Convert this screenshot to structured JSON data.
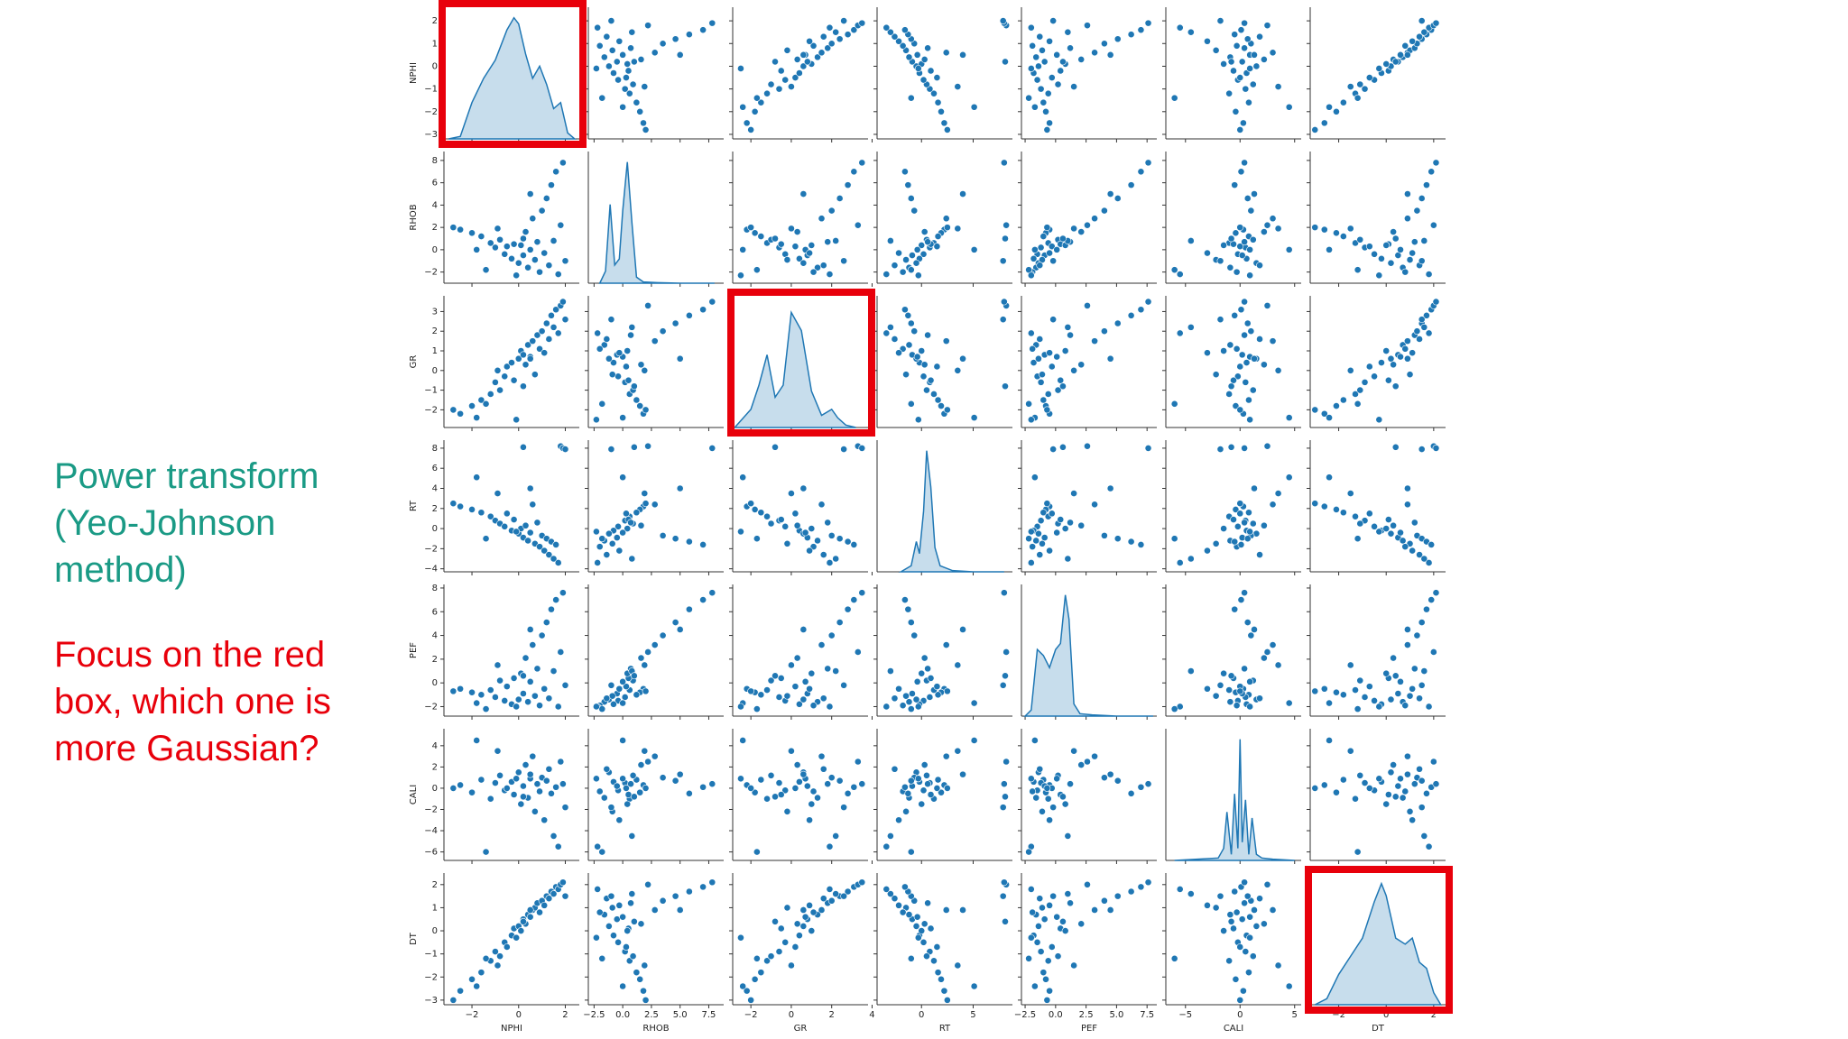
{
  "slide": {
    "text_teal": "Power transform (Yeo-Johnson method)",
    "text_red": "Focus on the red box, which one is more Gaussian?",
    "teal_color": "#1a9a85",
    "red_color": "#e8000b"
  },
  "chart_data": {
    "type": "pairplot",
    "color": "#1f77b4",
    "highlight": [
      0,
      2,
      6
    ],
    "highlight_color": "#e8000b",
    "variables": [
      {
        "name": "NPHI",
        "lim": [
          -3.2,
          2.6
        ],
        "xticks": [
          {
            "value": -2,
            "label": "−2"
          },
          0,
          2
        ],
        "yticks": [
          {
            "value": -3,
            "label": "−3"
          },
          {
            "value": -2,
            "label": "−2"
          },
          {
            "value": -1,
            "label": "−1"
          },
          0,
          1,
          2
        ],
        "kde": {
          "x": [
            -3,
            -2.5,
            -2,
            -1.5,
            -1,
            -0.5,
            -0.2,
            0,
            0.3,
            0.6,
            0.9,
            1.2,
            1.5,
            1.8,
            2.1,
            2.4
          ],
          "density": [
            0,
            0.02,
            0.3,
            0.5,
            0.65,
            0.9,
            1.0,
            0.95,
            0.7,
            0.5,
            0.6,
            0.45,
            0.25,
            0.3,
            0.05,
            0
          ]
        }
      },
      {
        "name": "RHOB",
        "lim": [
          -3,
          8.8
        ],
        "xticks": [
          {
            "value": -2.5,
            "label": "−2.5"
          },
          {
            "value": 0,
            "label": "0.0"
          },
          {
            "value": 2.5,
            "label": "2.5"
          },
          {
            "value": 5,
            "label": "5.0"
          },
          {
            "value": 7.5,
            "label": "7.5"
          }
        ],
        "yticks": [
          {
            "value": -2,
            "label": "−2"
          },
          0,
          2,
          4,
          6,
          8
        ],
        "kde": {
          "x": [
            -2,
            -1.5,
            -1.1,
            -0.7,
            -0.3,
            0,
            0.4,
            0.8,
            1.2,
            1.8,
            3,
            5,
            8
          ],
          "density": [
            0,
            0.1,
            0.65,
            0.15,
            0.2,
            0.6,
            1.0,
            0.5,
            0.05,
            0.01,
            0.005,
            0,
            0
          ]
        }
      },
      {
        "name": "GR",
        "lim": [
          -2.9,
          3.8
        ],
        "xticks": [
          {
            "value": -2,
            "label": "−2"
          },
          0,
          2,
          4
        ],
        "yticks": [
          {
            "value": -2,
            "label": "−2"
          },
          {
            "value": -1,
            "label": "−1"
          },
          0,
          1,
          2,
          3
        ],
        "kde": {
          "x": [
            -2.8,
            -2,
            -1.6,
            -1.2,
            -0.8,
            -0.4,
            0,
            0.5,
            1,
            1.5,
            2,
            2.3,
            2.7,
            3.2
          ],
          "density": [
            0,
            0.15,
            0.35,
            0.6,
            0.25,
            0.35,
            0.95,
            0.8,
            0.3,
            0.1,
            0.15,
            0.08,
            0.02,
            0
          ]
        }
      },
      {
        "name": "RT",
        "lim": [
          -4.3,
          8.8
        ],
        "xticks": [
          0,
          5
        ],
        "yticks": [
          {
            "value": -4,
            "label": "−4"
          },
          {
            "value": -2,
            "label": "−2"
          },
          0,
          2,
          4,
          6,
          8
        ],
        "kde": {
          "x": [
            -2,
            -1,
            -0.5,
            -0.2,
            0.2,
            0.5,
            0.9,
            1.3,
            1.8,
            3,
            5,
            8
          ],
          "density": [
            0,
            0.05,
            0.25,
            0.15,
            0.5,
            1.0,
            0.7,
            0.2,
            0.05,
            0.01,
            0,
            0
          ]
        }
      },
      {
        "name": "PEF",
        "lim": [
          -2.8,
          8.3
        ],
        "xticks": [
          {
            "value": -2.5,
            "label": "−2.5"
          },
          {
            "value": 0,
            "label": "0.0"
          },
          {
            "value": 2.5,
            "label": "2.5"
          },
          {
            "value": 5,
            "label": "5.0"
          },
          {
            "value": 7.5,
            "label": "7.5"
          }
        ],
        "yticks": [
          {
            "value": -2,
            "label": "−2"
          },
          0,
          2,
          4,
          6,
          8
        ],
        "kde": {
          "x": [
            -2.5,
            -2,
            -1.5,
            -1,
            -0.5,
            0,
            0.4,
            0.8,
            1.1,
            1.5,
            2,
            3,
            5,
            8
          ],
          "density": [
            0,
            0.05,
            0.55,
            0.5,
            0.4,
            0.55,
            0.6,
            1.0,
            0.8,
            0.1,
            0.02,
            0.01,
            0,
            0
          ]
        }
      },
      {
        "name": "CALI",
        "lim": [
          -6.8,
          5.6
        ],
        "xticks": [
          {
            "value": -5,
            "label": "−5"
          },
          0,
          5
        ],
        "yticks": [
          {
            "value": -6,
            "label": "−6"
          },
          {
            "value": -4,
            "label": "−4"
          },
          {
            "value": -2,
            "label": "−2"
          },
          0,
          2,
          4
        ],
        "kde": {
          "x": [
            -6,
            -2,
            -1.5,
            -1.2,
            -0.8,
            -0.5,
            -0.2,
            0,
            0.2,
            0.5,
            0.8,
            1.1,
            1.5,
            2,
            3,
            5
          ],
          "density": [
            0,
            0.02,
            0.1,
            0.4,
            0.05,
            0.55,
            0.1,
            1.0,
            0.15,
            0.5,
            0.05,
            0.35,
            0.05,
            0.02,
            0.01,
            0
          ]
        }
      },
      {
        "name": "DT",
        "lim": [
          -3.2,
          2.5
        ],
        "xticks": [
          {
            "value": -2,
            "label": "−2"
          },
          0,
          2
        ],
        "yticks": [
          {
            "value": -3,
            "label": "−3"
          },
          {
            "value": -2,
            "label": "−2"
          },
          {
            "value": -1,
            "label": "−1"
          },
          0,
          1,
          2
        ],
        "kde": {
          "x": [
            -3,
            -2.5,
            -2,
            -1.5,
            -1,
            -0.5,
            -0.2,
            0,
            0.4,
            0.8,
            1.1,
            1.4,
            1.7,
            2,
            2.3
          ],
          "density": [
            0,
            0.05,
            0.25,
            0.4,
            0.55,
            0.85,
            1.0,
            0.9,
            0.55,
            0.5,
            0.55,
            0.35,
            0.3,
            0.1,
            0
          ]
        }
      }
    ],
    "rows": [
      [
        -2.5,
        1.8,
        -2.2,
        2.2,
        -0.5,
        0.3,
        -2.6
      ],
      [
        -2.0,
        1.5,
        -1.8,
        1.9,
        -0.8,
        -0.4,
        -2.1
      ],
      [
        -1.6,
        1.2,
        -1.5,
        1.6,
        -1.0,
        0.8,
        -1.8
      ],
      [
        -1.2,
        0.6,
        -1.2,
        1.2,
        -0.6,
        -1.0,
        -1.3
      ],
      [
        -1.0,
        0.2,
        -0.6,
        0.8,
        -1.2,
        0.5,
        -0.9
      ],
      [
        -0.8,
        0.9,
        -1.0,
        0.5,
        0.2,
        1.2,
        -1.1
      ],
      [
        -0.6,
        -0.4,
        -0.3,
        0.2,
        -1.5,
        -0.2,
        -0.5
      ],
      [
        -0.5,
        0.3,
        0.2,
        1.5,
        -0.3,
        0.0,
        -0.7
      ],
      [
        -0.3,
        -0.8,
        0.4,
        -0.2,
        -1.8,
        0.6,
        -0.2
      ],
      [
        -0.2,
        0.5,
        -0.5,
        0.9,
        0.4,
        -0.6,
        0.1
      ],
      [
        0.0,
        -1.2,
        0.6,
        -0.5,
        -1.4,
        1.5,
        0.2
      ],
      [
        0.1,
        0.4,
        1.0,
        0.0,
        0.8,
        -1.5,
        0.0
      ],
      [
        0.2,
        -0.5,
        0.8,
        -0.9,
        -0.9,
        0.2,
        0.5
      ],
      [
        0.3,
        1.6,
        0.3,
        0.3,
        2.1,
        2.2,
        0.3
      ],
      [
        0.4,
        -1.6,
        1.3,
        -1.2,
        -1.6,
        -0.9,
        0.7
      ],
      [
        0.5,
        0.0,
        0.7,
        -0.4,
        0.1,
        0.9,
        0.6
      ],
      [
        0.6,
        2.8,
        1.5,
        2.4,
        3.2,
        3.0,
        0.9
      ],
      [
        0.7,
        -0.9,
        -0.2,
        -1.5,
        -1.1,
        -2.2,
        1.0
      ],
      [
        0.8,
        0.7,
        1.8,
        0.6,
        1.2,
        0.4,
        1.2
      ],
      [
        0.9,
        -2.0,
        1.1,
        -1.8,
        -1.9,
        -0.3,
        0.8
      ],
      [
        1.0,
        3.5,
        2.0,
        -0.7,
        4.0,
        1.0,
        1.3
      ],
      [
        1.1,
        -0.3,
        0.9,
        -2.2,
        -0.5,
        -3.0,
        1.1
      ],
      [
        1.2,
        4.6,
        2.4,
        -1.0,
        5.1,
        0.7,
        1.5
      ],
      [
        1.3,
        -1.4,
        1.6,
        -2.6,
        -1.3,
        1.8,
        1.4
      ],
      [
        1.4,
        5.8,
        2.8,
        -1.3,
        6.2,
        -0.5,
        1.7
      ],
      [
        1.5,
        0.8,
        2.2,
        -3.0,
        1.0,
        -4.5,
        1.6
      ],
      [
        1.6,
        7.0,
        3.1,
        -1.6,
        7.0,
        0.1,
        1.9
      ],
      [
        1.7,
        -2.2,
        1.9,
        -3.4,
        -2.0,
        -5.5,
        1.8
      ],
      [
        1.8,
        2.2,
        3.3,
        8.2,
        2.6,
        2.5,
        2.0
      ],
      [
        1.9,
        7.8,
        3.5,
        8.0,
        7.6,
        0.4,
        2.1
      ],
      [
        2.0,
        -1.0,
        2.6,
        7.9,
        -0.2,
        -1.8,
        1.5
      ],
      [
        -1.8,
        0.0,
        -2.4,
        5.1,
        -1.7,
        4.5,
        -2.4
      ],
      [
        -2.8,
        2.0,
        -2.0,
        2.5,
        -0.7,
        0.0,
        -3.0
      ],
      [
        -0.9,
        1.9,
        0.0,
        3.5,
        1.5,
        3.5,
        -1.5
      ],
      [
        0.5,
        5.0,
        0.6,
        4.0,
        4.5,
        1.3,
        0.9
      ],
      [
        -1.4,
        -1.8,
        -1.7,
        -1.0,
        -2.2,
        -6.0,
        -1.2
      ],
      [
        0.2,
        1.0,
        -0.8,
        8.1,
        0.6,
        -0.8,
        0.4
      ],
      [
        -0.1,
        -2.3,
        -2.5,
        -0.3,
        -2.0,
        0.9,
        -0.3
      ]
    ]
  }
}
